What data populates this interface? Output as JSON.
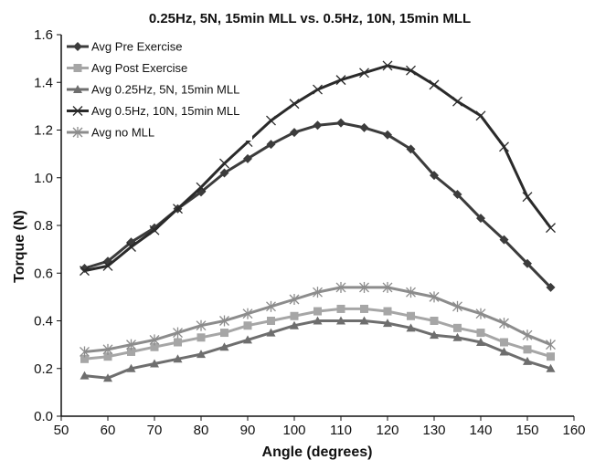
{
  "chart_data": {
    "type": "line",
    "title": "0.25Hz, 5N, 15min MLL vs. 0.5Hz, 10N, 15min MLL",
    "xlabel": "Angle (degrees)",
    "ylabel": "Torque (N)",
    "xlim": [
      50,
      160
    ],
    "ylim": [
      0.0,
      1.6
    ],
    "xticks": [
      "50",
      "60",
      "70",
      "80",
      "90",
      "100",
      "110",
      "120",
      "130",
      "140",
      "150",
      "160"
    ],
    "yticks": [
      "0.0",
      "0.2",
      "0.4",
      "0.6",
      "0.8",
      "1.0",
      "1.2",
      "1.4",
      "1.6"
    ],
    "grid": false,
    "legend_position": "top-left",
    "x": [
      55,
      60,
      65,
      70,
      75,
      80,
      85,
      90,
      95,
      100,
      105,
      110,
      115,
      120,
      125,
      130,
      135,
      140,
      145,
      150,
      155
    ],
    "series": [
      {
        "name": "Avg Pre Exercise",
        "color": "#3c3c3c",
        "marker": "diamond",
        "values": [
          0.62,
          0.65,
          0.73,
          0.79,
          0.87,
          0.94,
          1.02,
          1.08,
          1.14,
          1.19,
          1.22,
          1.23,
          1.21,
          1.18,
          1.12,
          1.01,
          0.93,
          0.83,
          0.74,
          0.64,
          0.54
        ]
      },
      {
        "name": "Avg Post Exercise",
        "color": "#a6a6a6",
        "marker": "square",
        "values": [
          0.24,
          0.25,
          0.27,
          0.29,
          0.31,
          0.33,
          0.35,
          0.38,
          0.4,
          0.42,
          0.44,
          0.45,
          0.45,
          0.44,
          0.42,
          0.4,
          0.37,
          0.35,
          0.31,
          0.28,
          0.25
        ]
      },
      {
        "name": "Avg 0.25Hz, 5N, 15min MLL",
        "color": "#6e6e6e",
        "marker": "triangle",
        "values": [
          0.17,
          0.16,
          0.2,
          0.22,
          0.24,
          0.26,
          0.29,
          0.32,
          0.35,
          0.38,
          0.4,
          0.4,
          0.4,
          0.39,
          0.37,
          0.34,
          0.33,
          0.31,
          0.27,
          0.23,
          0.2
        ]
      },
      {
        "name": "Avg 0.5Hz, 10N, 15min MLL",
        "color": "#2a2a2a",
        "marker": "x",
        "values": [
          0.61,
          0.63,
          0.71,
          0.78,
          0.87,
          0.96,
          1.06,
          1.15,
          1.24,
          1.31,
          1.37,
          1.41,
          1.44,
          1.47,
          1.45,
          1.39,
          1.32,
          1.26,
          1.13,
          0.92,
          0.79
        ]
      },
      {
        "name": "Avg no MLL",
        "color": "#8c8c8c",
        "marker": "asterisk",
        "values": [
          0.27,
          0.28,
          0.3,
          0.32,
          0.35,
          0.38,
          0.4,
          0.43,
          0.46,
          0.49,
          0.52,
          0.54,
          0.54,
          0.54,
          0.52,
          0.5,
          0.46,
          0.43,
          0.39,
          0.34,
          0.3
        ]
      }
    ]
  }
}
